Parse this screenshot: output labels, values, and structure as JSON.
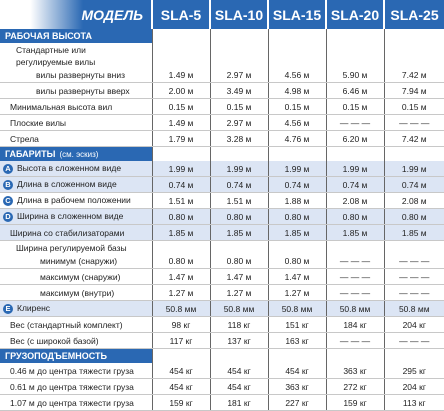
{
  "table": {
    "header": "МОДЕЛЬ",
    "models": [
      "SLA-5",
      "SLA-10",
      "SLA-15",
      "SLA-20",
      "SLA-25"
    ],
    "rows": [
      {
        "section": "РАБОЧАЯ ВЫСОТА"
      },
      {
        "label": "Стандартные или"
      },
      {
        "label": "регулируемые вилы"
      },
      {
        "label": "вилы развернуты вниз",
        "values": [
          "1.49 м",
          "2.97 м",
          "4.56 м",
          "5.90 м",
          "7.42 м"
        ]
      },
      {
        "label": "вилы развернуты вверх",
        "values": [
          "2.00 м",
          "3.49 м",
          "4.98 м",
          "6.46 м",
          "7.94 м"
        ]
      },
      {
        "label": "Минимальная высота вил",
        "values": [
          "0.15 м",
          "0.15 м",
          "0.15 м",
          "0.15 м",
          "0.15 м"
        ]
      },
      {
        "label": "Плоские вилы",
        "values": [
          "1.49 м",
          "2.97 м",
          "4.56 м",
          "— — —",
          "— — —"
        ]
      },
      {
        "label": "Стрела",
        "values": [
          "1.79 м",
          "3.28 м",
          "4.76 м",
          "6.20 м",
          "7.42 м"
        ]
      },
      {
        "section": "ГАБАРИТЫ",
        "note": "(см. эскиз)"
      },
      {
        "marker": "A",
        "shaded": true,
        "label": "Высота в сложенном виде",
        "values": [
          "1.99 м",
          "1.99 м",
          "1.99 м",
          "1.99 м",
          "1.99 м"
        ]
      },
      {
        "marker": "B",
        "shaded": true,
        "label": "Длина в сложенном виде",
        "values": [
          "0.74 м",
          "0.74 м",
          "0.74 м",
          "0.74 м",
          "0.74 м"
        ]
      },
      {
        "marker": "C",
        "label": "Длина в рабочем положении",
        "values": [
          "1.51 м",
          "1.51 м",
          "1.88 м",
          "2.08 м",
          "2.08 м"
        ]
      },
      {
        "marker": "D",
        "shaded": true,
        "label": "Ширина в сложенном виде",
        "values": [
          "0.80 м",
          "0.80 м",
          "0.80 м",
          "0.80 м",
          "0.80 м"
        ]
      },
      {
        "shaded": true,
        "label": "Ширина со стабилизаторами",
        "values": [
          "1.85 м",
          "1.85 м",
          "1.85 м",
          "1.85 м",
          "1.85 м"
        ]
      },
      {
        "label": "Ширина регулируемой базы"
      },
      {
        "label": "минимум  (снаружи)",
        "values": [
          "0.80 м",
          "0.80 м",
          "0.80 м",
          "— — —",
          "— — —"
        ]
      },
      {
        "label": "максимум  (снаружи)",
        "values": [
          "1.47 м",
          "1.47 м",
          "1.47 м",
          "— — —",
          "— — —"
        ]
      },
      {
        "label": "максимум  (внутри)",
        "values": [
          "1.27 м",
          "1.27 м",
          "1.27 м",
          "— — —",
          "— — —"
        ]
      },
      {
        "marker": "E",
        "shaded": true,
        "label": "Клиренс",
        "values": [
          "50.8 мм",
          "50.8 мм",
          "50.8 мм",
          "50.8 мм",
          "50.8 мм"
        ]
      },
      {
        "label": "Вес (стандартный комплект)",
        "values": [
          "98 кг",
          "118 кг",
          "151 кг",
          "184 кг",
          "204 кг"
        ]
      },
      {
        "label": "Вес (с широкой базой)",
        "values": [
          "117 кг",
          "137 кг",
          "163 кг",
          "— — —",
          "— — —"
        ]
      },
      {
        "section": "ГРУЗОПОДЪЕМНОСТЬ"
      },
      {
        "label": "0.46 м до центра тяжести груза",
        "values": [
          "454 кг",
          "454 кг",
          "454 кг",
          "363 кг",
          "295 кг"
        ]
      },
      {
        "label": "0.61 м до центра тяжести груза",
        "values": [
          "454 кг",
          "454 кг",
          "363 кг",
          "272 кг",
          "204 кг"
        ]
      },
      {
        "label": "1.07 м до центра тяжести груза",
        "values": [
          "159 кг",
          "181 кг",
          "227 кг",
          "159 кг",
          "113 кг"
        ]
      }
    ]
  }
}
